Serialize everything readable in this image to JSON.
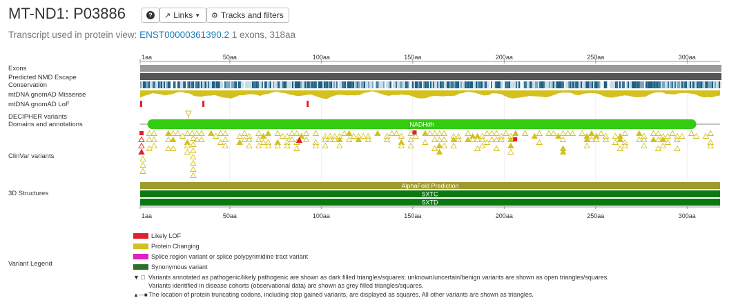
{
  "header": {
    "title": "MT-ND1: P03886",
    "help_icon": "question-circle-icon",
    "links_label": "Links",
    "tracks_label": "Tracks and filters",
    "subtitle_prefix": "Transcript used in protein view:",
    "transcript_id": "ENST00000361390.2",
    "subtitle_suffix": "1 exons, 318aa"
  },
  "ruler": {
    "start_label": "1aa",
    "ticks": [
      50,
      100,
      150,
      200,
      250,
      300
    ],
    "unit": "aa",
    "length": 318
  },
  "tracks": {
    "exons": "Exons",
    "nmd": "Predicted NMD Escape",
    "conservation": "Conservation",
    "missense": "mtDNA gnomAD Missense",
    "lof": "mtDNA gnomAD LoF",
    "decipher": "DECIPHER variants",
    "domains": "Domains and annotations",
    "clinvar": "ClinVar variants",
    "structures": "3D Structures"
  },
  "domain_bar": {
    "label": "NADHdh",
    "start": 5,
    "end": 305,
    "color": "#33cc11"
  },
  "structures": [
    {
      "label": "AlphaFold Prediction",
      "color": "#a09a2e"
    },
    {
      "label": "5XTC",
      "color": "#0a7a10"
    },
    {
      "label": "5XTD",
      "color": "#0a7a10"
    }
  ],
  "lof_positions": [
    1,
    35,
    92
  ],
  "decipher_positions": [
    27
  ],
  "colors": {
    "lof": "#e0202a",
    "protein_changing": "#d4c01f",
    "splice": "#e020c0",
    "synonymous": "#2e6e2a",
    "exon": "#999999",
    "nmd": "#555555",
    "conservation": "#3a7a9a"
  },
  "legend": {
    "title": "Variant Legend",
    "items": [
      {
        "label": "Likely LOF",
        "color": "#e0202a"
      },
      {
        "label": "Protein Changing",
        "color": "#d4c01f"
      },
      {
        "label": "Splice region variant or splice polypyrimidine tract variant",
        "color": "#e020c0"
      },
      {
        "label": "Synonymous variant",
        "color": "#2e6e2a"
      }
    ],
    "note1": "Variants annotated as pathogenic/likely pathogenic are shown as dark filled triangles/squares; unknown/uncertain/benign variants are shown as open triangles/squares.",
    "note2": "Variants identified in disease cohorts (observational data) are shown as grey filled triangles/squares.",
    "note3": "The location of protein truncating codons, including stop gained variants, are displayed as squares. All other variants are shown as triangles."
  }
}
